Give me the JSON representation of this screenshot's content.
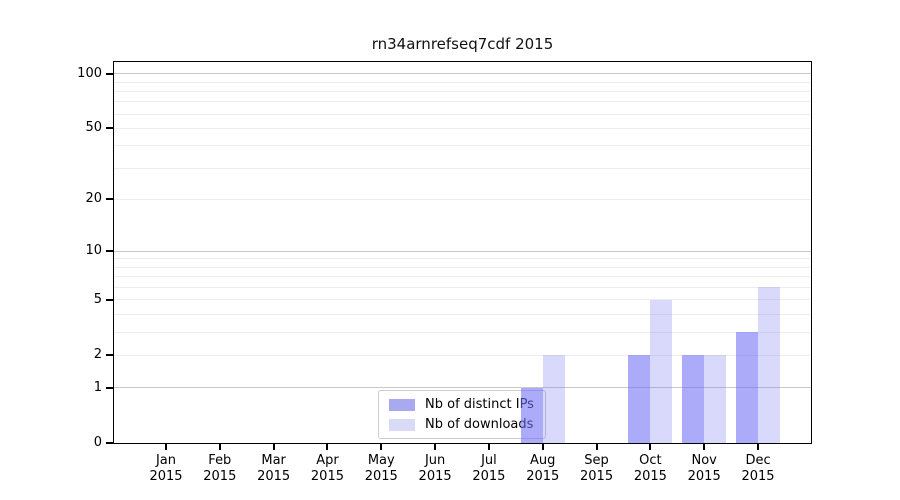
{
  "figure": {
    "background": "#ffffff"
  },
  "chart_data": {
    "type": "bar",
    "title": "rn34arnrefseq7cdf 2015",
    "categories": [
      "Jan 2015",
      "Feb 2015",
      "Mar 2015",
      "Apr 2015",
      "May 2015",
      "Jun 2015",
      "Jul 2015",
      "Aug 2015",
      "Sep 2015",
      "Oct 2015",
      "Nov 2015",
      "Dec 2015"
    ],
    "series": [
      {
        "name": "Nb of distinct IPs",
        "color": "rgba(110,110,245,0.58)",
        "legend_swatch_color": "#a9a9f2",
        "values": [
          0,
          0,
          0,
          0,
          0,
          0,
          0,
          1,
          0,
          2,
          2,
          3
        ]
      },
      {
        "name": "Nb of downloads",
        "color": "rgba(110,110,245,0.26)",
        "legend_swatch_color": "#d9d9f8",
        "values": [
          0,
          0,
          0,
          0,
          0,
          0,
          0,
          2,
          0,
          5,
          2,
          6
        ]
      }
    ],
    "xlabel": "",
    "ylabel": "",
    "y_scale": "log10(1+value)",
    "ylim": [
      0,
      116
    ],
    "y_ticks": [
      0,
      1,
      2,
      5,
      10,
      20,
      50,
      100
    ],
    "y_major_gridlines": [
      1,
      10,
      100
    ],
    "y_minor_gridlines": [
      2,
      3,
      4,
      5,
      6,
      7,
      8,
      9,
      20,
      30,
      40,
      50,
      60,
      70,
      80,
      90
    ],
    "grid": true,
    "legend_position": "lower center",
    "colors": {
      "major_gridline": "#c9c9c9",
      "minor_gridline": "#ededed",
      "axis": "#000000"
    }
  }
}
